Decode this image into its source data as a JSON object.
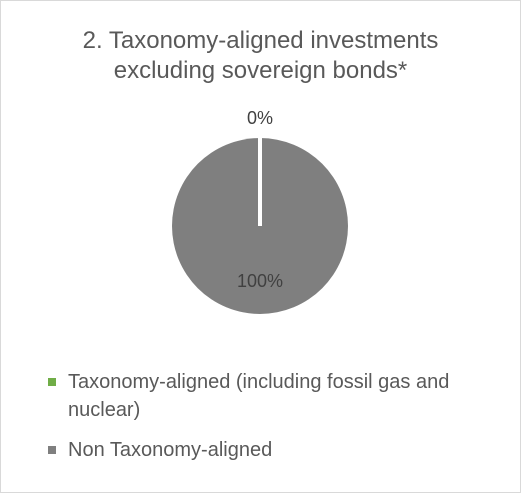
{
  "chart_data": {
    "type": "pie",
    "title_lines": [
      "2. Taxonomy-aligned investments",
      "excluding sovereign bonds*"
    ],
    "categories": [
      "Taxonomy-aligned (including fossil gas and nuclear)",
      "Non Taxonomy-aligned"
    ],
    "values": [
      0,
      100
    ],
    "data_labels": [
      "0%",
      "100%"
    ],
    "colors": [
      "#70ad47",
      "#7f7f7f"
    ],
    "legend_position": "bottom"
  }
}
